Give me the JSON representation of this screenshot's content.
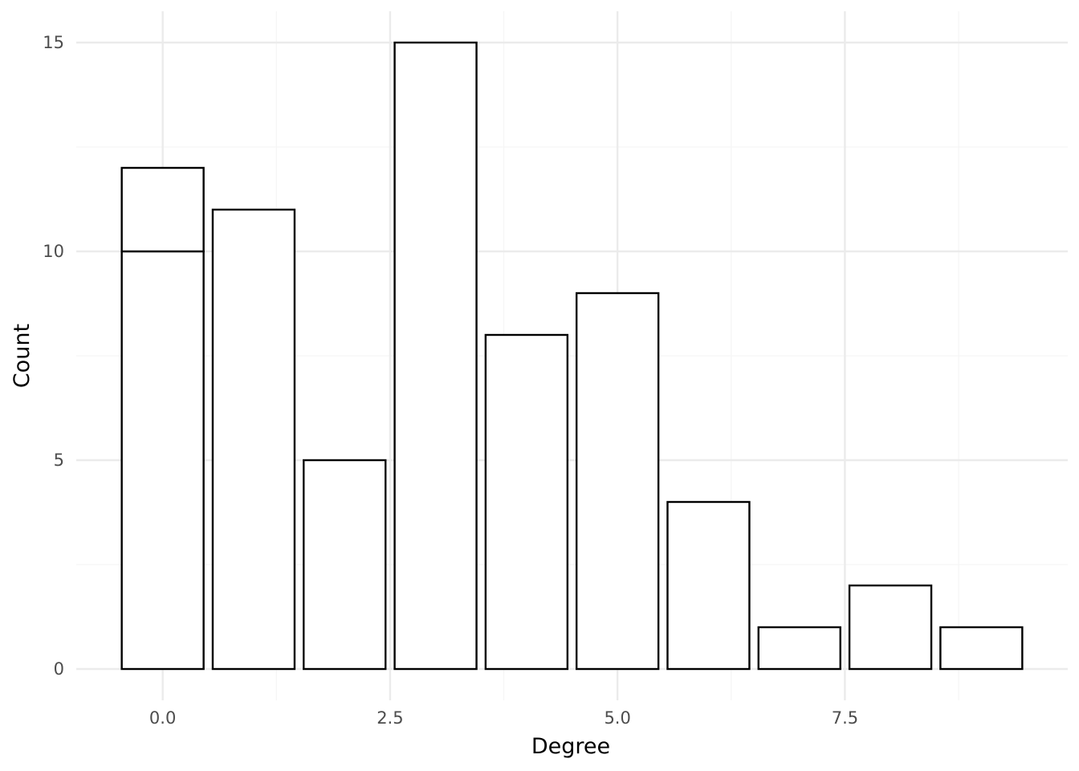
{
  "chart_data": {
    "type": "bar",
    "xlabel": "Degree",
    "ylabel": "Count",
    "x": [
      0,
      1,
      2,
      3,
      4,
      5,
      6,
      7,
      8,
      9
    ],
    "series": [
      {
        "values": [
          10,
          0,
          0,
          0,
          0,
          0,
          0,
          0,
          0,
          0
        ]
      },
      {
        "values": [
          2,
          11,
          5,
          15,
          8,
          9,
          4,
          1,
          2,
          1
        ]
      }
    ],
    "totals": [
      12,
      11,
      5,
      15,
      8,
      9,
      4,
      1,
      2,
      1
    ],
    "stacked": true,
    "bar_fill": "#ffffff",
    "bar_stroke": "#000000",
    "xlim": [
      -0.95,
      9.95
    ],
    "ylim": [
      -0.75,
      15.75
    ],
    "x_ticks": [
      0,
      2.5,
      5,
      7.5
    ],
    "x_tick_labels": [
      "0.0",
      "2.5",
      "5.0",
      "7.5"
    ],
    "x_minor_ticks": [
      1.25,
      3.75,
      6.25,
      8.75
    ],
    "y_ticks": [
      0,
      5,
      10,
      15
    ],
    "y_tick_labels": [
      "0",
      "5",
      "10",
      "15"
    ],
    "y_minor_ticks": [
      2.5,
      7.5,
      12.5
    ],
    "grid": true,
    "legend": "none",
    "grid_major_color": "#ebebeb",
    "grid_minor_color": "#f5f5f5"
  }
}
